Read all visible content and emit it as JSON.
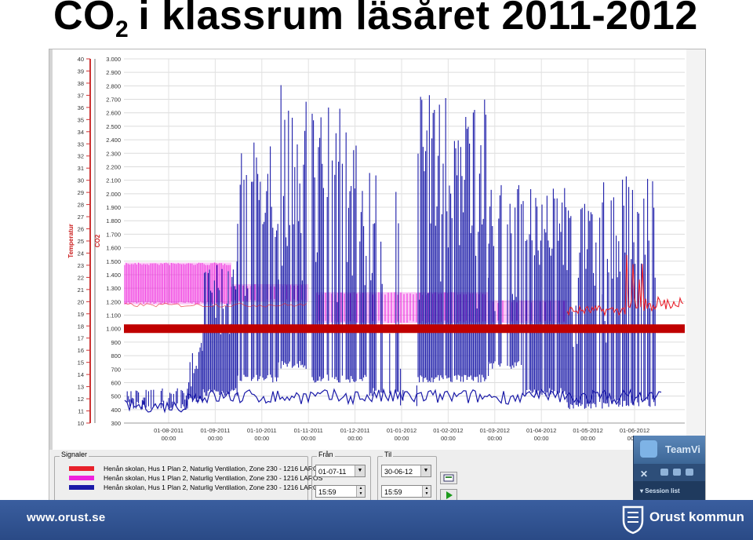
{
  "title": {
    "main": "CO",
    "subscript": "2",
    "rest": "i klassrum läsåret 2011-2012"
  },
  "chart_data": {
    "type": "line",
    "temperature_axis": {
      "label": "Temperatur",
      "ticks": [
        10,
        11,
        12,
        13,
        14,
        15,
        16,
        17,
        18,
        19,
        20,
        21,
        22,
        23,
        24,
        25,
        26,
        27,
        28,
        29,
        30,
        31,
        32,
        33,
        34,
        35,
        36,
        37,
        38,
        39,
        40
      ]
    },
    "co2_axis": {
      "label": "CO2",
      "range": [
        300,
        3000
      ],
      "ticks": [
        "300",
        "400",
        "500",
        "600",
        "700",
        "800",
        "900",
        "1.000",
        "1.100",
        "1.200",
        "1.300",
        "1.400",
        "1.500",
        "1.600",
        "1.700",
        "1.800",
        "1.900",
        "2.000",
        "2.100",
        "2.200",
        "2.300",
        "2.400",
        "2.500",
        "2.600",
        "2.700",
        "2.800",
        "2.900",
        "3.000"
      ]
    },
    "x_axis": {
      "dates": [
        "01-08-2011",
        "01-09-2011",
        "01-10-2011",
        "01-11-2011",
        "01-12-2011",
        "01-01-2012",
        "01-02-2012",
        "01-03-2012",
        "01-04-2012",
        "01-05-2012",
        "01-06-2012"
      ],
      "times": [
        "00:00",
        "00:00",
        "00:00",
        "00:00",
        "00:00",
        "00:00",
        "00:00",
        "00:00",
        "00:00",
        "00:00",
        "00:00"
      ]
    },
    "reference_line": {
      "co2": 1000,
      "color": "#c00000"
    },
    "series": [
      {
        "color": "#e8212b"
      },
      {
        "color": "#ee22dd"
      },
      {
        "color": "#1a1aa8"
      }
    ]
  },
  "signals": {
    "label": "Signaler",
    "items": [
      {
        "text": "Henån skolan, Hus 1 Plan 2, Naturlig Ventilation, Zone 230 - 1216 LAROS",
        "color": "#e8212b"
      },
      {
        "text": "Henån skolan, Hus 1 Plan 2, Naturlig Ventilation, Zone 230 - 1216 LAROS",
        "color": "#ee22dd"
      },
      {
        "text": "Henån skolan, Hus 1 Plan 2, Naturlig Ventilation, Zone 230 - 1216 LAROS",
        "color": "#1a1aa8"
      }
    ]
  },
  "from": {
    "label": "Från",
    "date": "01-07-11",
    "time": "15:59"
  },
  "to": {
    "label": "Til",
    "date": "30-06-12",
    "time": "15:59"
  },
  "teamviewer": {
    "name": "TeamVi",
    "session": "Session list"
  },
  "footer": {
    "url": "www.orust.se",
    "brand": "Orust kommun"
  }
}
